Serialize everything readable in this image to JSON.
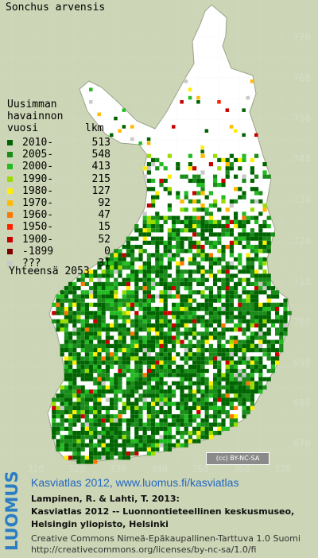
{
  "species": "Sonchus arvensis",
  "legend": {
    "title_lines": [
      "Uusimman",
      "havainnon"
    ],
    "col_year": "vuosi",
    "col_count": "lkm",
    "items": [
      {
        "label": "2010-",
        "count": "513",
        "color": "#006400"
      },
      {
        "label": "2005-",
        "count": "548",
        "color": "#1a8c1a"
      },
      {
        "label": "2000-",
        "count": "413",
        "color": "#22bb22"
      },
      {
        "label": "1990-",
        "count": "215",
        "color": "#99dd00"
      },
      {
        "label": "1980-",
        "count": "127",
        "color": "#ffee00"
      },
      {
        "label": "1970-",
        "count": "92",
        "color": "#ffbb00"
      },
      {
        "label": "1960-",
        "count": "47",
        "color": "#ff7700"
      },
      {
        "label": "1950-",
        "count": "15",
        "color": "#ff2200"
      },
      {
        "label": "1900-",
        "count": "52",
        "color": "#c80000"
      },
      {
        "label": "-1899",
        "count": "0",
        "color": "#7a0000"
      },
      {
        "label": "???",
        "count": "31",
        "color": "#c8c8c8"
      }
    ],
    "total": "Yhteensä 2053"
  },
  "axes": {
    "y_ticks": [
      "770",
      "760",
      "750",
      "740",
      "730",
      "720",
      "710",
      "700",
      "690",
      "680",
      "670"
    ],
    "x_ticks": [
      "310",
      "320",
      "330",
      "340",
      "350",
      "360",
      "370"
    ]
  },
  "colors": {
    "background": "#ccd5b5",
    "land": "#ffffff",
    "grid": "#e6e6e6",
    "axis_text": "#d6dcc8",
    "link": "#2167c2",
    "luomus": "#2c7ec4"
  },
  "license_badge": "BY-NC-SA",
  "brand": "LUOMUS",
  "atlas_line": "Kasviatlas 2012, www.luomus.fi/kasviatlas",
  "citation": [
    "Lampinen, R. & Lahti, T. 2013:",
    "Kasviatlas 2012 -- Luonnontieteellinen keskusmuseo,",
    "Helsingin yliopisto, Helsinki"
  ],
  "license": [
    "Creative Commons Nimeä-Epäkaupallinen-Tarttuva 1.0 Suomi",
    "http://creativecommons.org/licenses/by-nc-sa/1.0/fi"
  ]
}
